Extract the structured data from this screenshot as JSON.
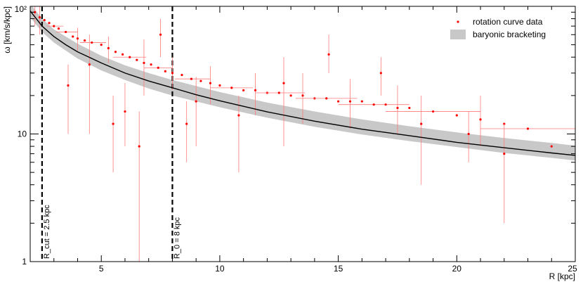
{
  "chart_data": {
    "type": "scatter",
    "title": "",
    "xlabel": "R [kpc]",
    "ylabel": "ω [km/s/kpc]",
    "x_scale": "linear",
    "y_scale": "log",
    "xlim": [
      2,
      25
    ],
    "ylim": [
      1,
      100
    ],
    "x_ticks": [
      5,
      10,
      15,
      20,
      25
    ],
    "x_tick_labels": [
      "5",
      "10",
      "15",
      "20",
      "25"
    ],
    "y_ticks": [
      1,
      10,
      100
    ],
    "y_tick_labels": [
      "1",
      "10",
      "10²"
    ],
    "grid": false,
    "legend_position": "top-right",
    "legend": [
      {
        "label": "rotation curve data",
        "marker": "point",
        "color": "#ff0000"
      },
      {
        "label": "baryonic bracketing",
        "marker": "band",
        "color": "#c8c8c8"
      }
    ],
    "vertical_lines": [
      {
        "x": 2.5,
        "label": "R_cut = 2.5 kpc",
        "style": "dashed"
      },
      {
        "x": 8,
        "label": "R_0 = 8 kpc",
        "style": "dashed"
      }
    ],
    "series": [
      {
        "name": "rotation curve data",
        "type": "scatter",
        "color": "#ff0000",
        "points": [
          {
            "x": 2.2,
            "y": 90,
            "ylo": 70,
            "yhi": 100
          },
          {
            "x": 2.4,
            "y": 82,
            "ylo": 60,
            "yhi": 100
          },
          {
            "x": 2.6,
            "y": 78
          },
          {
            "x": 2.8,
            "y": 74
          },
          {
            "x": 3.0,
            "y": 70,
            "xlo": 2.7,
            "xhi": 3.4
          },
          {
            "x": 3.2,
            "y": 67
          },
          {
            "x": 3.5,
            "y": 63,
            "xlo": 3.1,
            "xhi": 4.0
          },
          {
            "x": 3.8,
            "y": 58
          },
          {
            "x": 4.0,
            "y": 56,
            "ylo": 45,
            "yhi": 68
          },
          {
            "x": 4.3,
            "y": 54
          },
          {
            "x": 4.6,
            "y": 52,
            "xlo": 4.1,
            "xhi": 5.2
          },
          {
            "x": 5.0,
            "y": 50
          },
          {
            "x": 5.3,
            "y": 47,
            "ylo": 36,
            "yhi": 58
          },
          {
            "x": 5.6,
            "y": 44
          },
          {
            "x": 5.9,
            "y": 42
          },
          {
            "x": 6.2,
            "y": 40,
            "xlo": 5.5,
            "xhi": 6.9
          },
          {
            "x": 6.5,
            "y": 38
          },
          {
            "x": 6.8,
            "y": 36,
            "ylo": 20,
            "yhi": 55
          },
          {
            "x": 7.1,
            "y": 35
          },
          {
            "x": 7.4,
            "y": 33,
            "xlo": 6.8,
            "xhi": 8.0
          },
          {
            "x": 7.7,
            "y": 31
          },
          {
            "x": 8.0,
            "y": 30,
            "ylo": 22,
            "yhi": 40
          },
          {
            "x": 8.4,
            "y": 29
          },
          {
            "x": 8.8,
            "y": 27,
            "xlo": 8.1,
            "xhi": 9.6
          },
          {
            "x": 9.2,
            "y": 26
          },
          {
            "x": 9.6,
            "y": 25,
            "ylo": 17,
            "yhi": 34
          },
          {
            "x": 10.0,
            "y": 24
          },
          {
            "x": 10.5,
            "y": 23,
            "xlo": 9.6,
            "xhi": 11.4
          },
          {
            "x": 11.0,
            "y": 22
          },
          {
            "x": 11.5,
            "y": 22,
            "ylo": 14,
            "yhi": 30
          },
          {
            "x": 12.0,
            "y": 21
          },
          {
            "x": 12.5,
            "y": 21,
            "xlo": 11.5,
            "xhi": 13.6
          },
          {
            "x": 13.0,
            "y": 20
          },
          {
            "x": 13.5,
            "y": 20,
            "ylo": 12,
            "yhi": 30
          },
          {
            "x": 14.0,
            "y": 19
          },
          {
            "x": 14.5,
            "y": 19,
            "xlo": 13.2,
            "xhi": 15.8
          },
          {
            "x": 15.0,
            "y": 18
          },
          {
            "x": 15.5,
            "y": 18,
            "ylo": 11,
            "yhi": 27
          },
          {
            "x": 16.0,
            "y": 18
          },
          {
            "x": 16.5,
            "y": 17,
            "xlo": 15.0,
            "xhi": 18.0
          },
          {
            "x": 17.0,
            "y": 17
          },
          {
            "x": 17.5,
            "y": 16,
            "ylo": 10,
            "yhi": 24
          },
          {
            "x": 18.0,
            "y": 16
          },
          {
            "x": 19.0,
            "y": 15,
            "xlo": 17.0,
            "xhi": 21.0
          },
          {
            "x": 20.0,
            "y": 14
          },
          {
            "x": 21.0,
            "y": 13,
            "ylo": 8,
            "yhi": 20
          },
          {
            "x": 22.0,
            "y": 12
          },
          {
            "x": 23.0,
            "y": 11,
            "xlo": 21.0,
            "xhi": 25.0
          },
          {
            "x": 24.0,
            "y": 8
          },
          {
            "x": 4.5,
            "y": 35,
            "ylo": 10,
            "yhi": 60
          },
          {
            "x": 5.5,
            "y": 12,
            "ylo": 5,
            "yhi": 20
          },
          {
            "x": 6.6,
            "y": 8,
            "ylo": 1,
            "yhi": 15
          },
          {
            "x": 7.5,
            "y": 60,
            "ylo": 40,
            "yhi": 80
          },
          {
            "x": 9.0,
            "y": 18,
            "ylo": 8,
            "yhi": 28
          },
          {
            "x": 10.8,
            "y": 14,
            "ylo": 5,
            "yhi": 20
          },
          {
            "x": 12.7,
            "y": 25,
            "ylo": 8,
            "yhi": 40
          },
          {
            "x": 14.6,
            "y": 42,
            "ylo": 30,
            "yhi": 60
          },
          {
            "x": 16.8,
            "y": 30,
            "ylo": 20,
            "yhi": 40
          },
          {
            "x": 18.5,
            "y": 12,
            "ylo": 4,
            "yhi": 20
          },
          {
            "x": 20.5,
            "y": 10,
            "ylo": 6,
            "yhi": 15
          },
          {
            "x": 22.0,
            "y": 7.0,
            "ylo": 2,
            "yhi": 12
          },
          {
            "x": 3.6,
            "y": 24,
            "ylo": 10,
            "yhi": 35
          },
          {
            "x": 6.0,
            "y": 15,
            "ylo": 8,
            "yhi": 25
          },
          {
            "x": 8.6,
            "y": 12,
            "ylo": 6,
            "yhi": 18
          }
        ]
      },
      {
        "name": "model",
        "type": "line",
        "color": "#000000",
        "points": [
          {
            "x": 2.0,
            "y": 92
          },
          {
            "x": 2.5,
            "y": 70
          },
          {
            "x": 3.0,
            "y": 58
          },
          {
            "x": 3.5,
            "y": 50
          },
          {
            "x": 4.0,
            "y": 44
          },
          {
            "x": 5.0,
            "y": 36
          },
          {
            "x": 6.0,
            "y": 30
          },
          {
            "x": 7.0,
            "y": 26
          },
          {
            "x": 8.0,
            "y": 23
          },
          {
            "x": 9.0,
            "y": 20.3
          },
          {
            "x": 10.0,
            "y": 18.2
          },
          {
            "x": 12.0,
            "y": 14.9
          },
          {
            "x": 14.0,
            "y": 12.6
          },
          {
            "x": 16.0,
            "y": 10.9
          },
          {
            "x": 18.0,
            "y": 9.7
          },
          {
            "x": 20.0,
            "y": 8.6
          },
          {
            "x": 22.0,
            "y": 7.8
          },
          {
            "x": 24.0,
            "y": 7.1
          },
          {
            "x": 25.0,
            "y": 6.8
          }
        ]
      },
      {
        "name": "baryonic bracketing",
        "type": "band",
        "color": "#c8c8c8",
        "points": [
          {
            "x": 2.0,
            "lower": 82,
            "upper": 105
          },
          {
            "x": 2.5,
            "lower": 63,
            "upper": 80
          },
          {
            "x": 3.0,
            "lower": 52,
            "upper": 66
          },
          {
            "x": 4.0,
            "lower": 39,
            "upper": 51
          },
          {
            "x": 5.0,
            "lower": 31.5,
            "upper": 41
          },
          {
            "x": 6.0,
            "lower": 26.5,
            "upper": 34.5
          },
          {
            "x": 7.0,
            "lower": 22.7,
            "upper": 30
          },
          {
            "x": 8.0,
            "lower": 20,
            "upper": 26.5
          },
          {
            "x": 10.0,
            "lower": 16.2,
            "upper": 21.3
          },
          {
            "x": 12.0,
            "lower": 13.4,
            "upper": 17.6
          },
          {
            "x": 14.0,
            "lower": 11.4,
            "upper": 15.0
          },
          {
            "x": 16.0,
            "lower": 9.9,
            "upper": 13.0
          },
          {
            "x": 18.0,
            "lower": 8.8,
            "upper": 11.5
          },
          {
            "x": 20.0,
            "lower": 7.9,
            "upper": 10.3
          },
          {
            "x": 22.0,
            "lower": 7.1,
            "upper": 9.3
          },
          {
            "x": 24.0,
            "lower": 6.5,
            "upper": 8.5
          },
          {
            "x": 25.0,
            "lower": 6.2,
            "upper": 8.1
          }
        ]
      }
    ]
  }
}
